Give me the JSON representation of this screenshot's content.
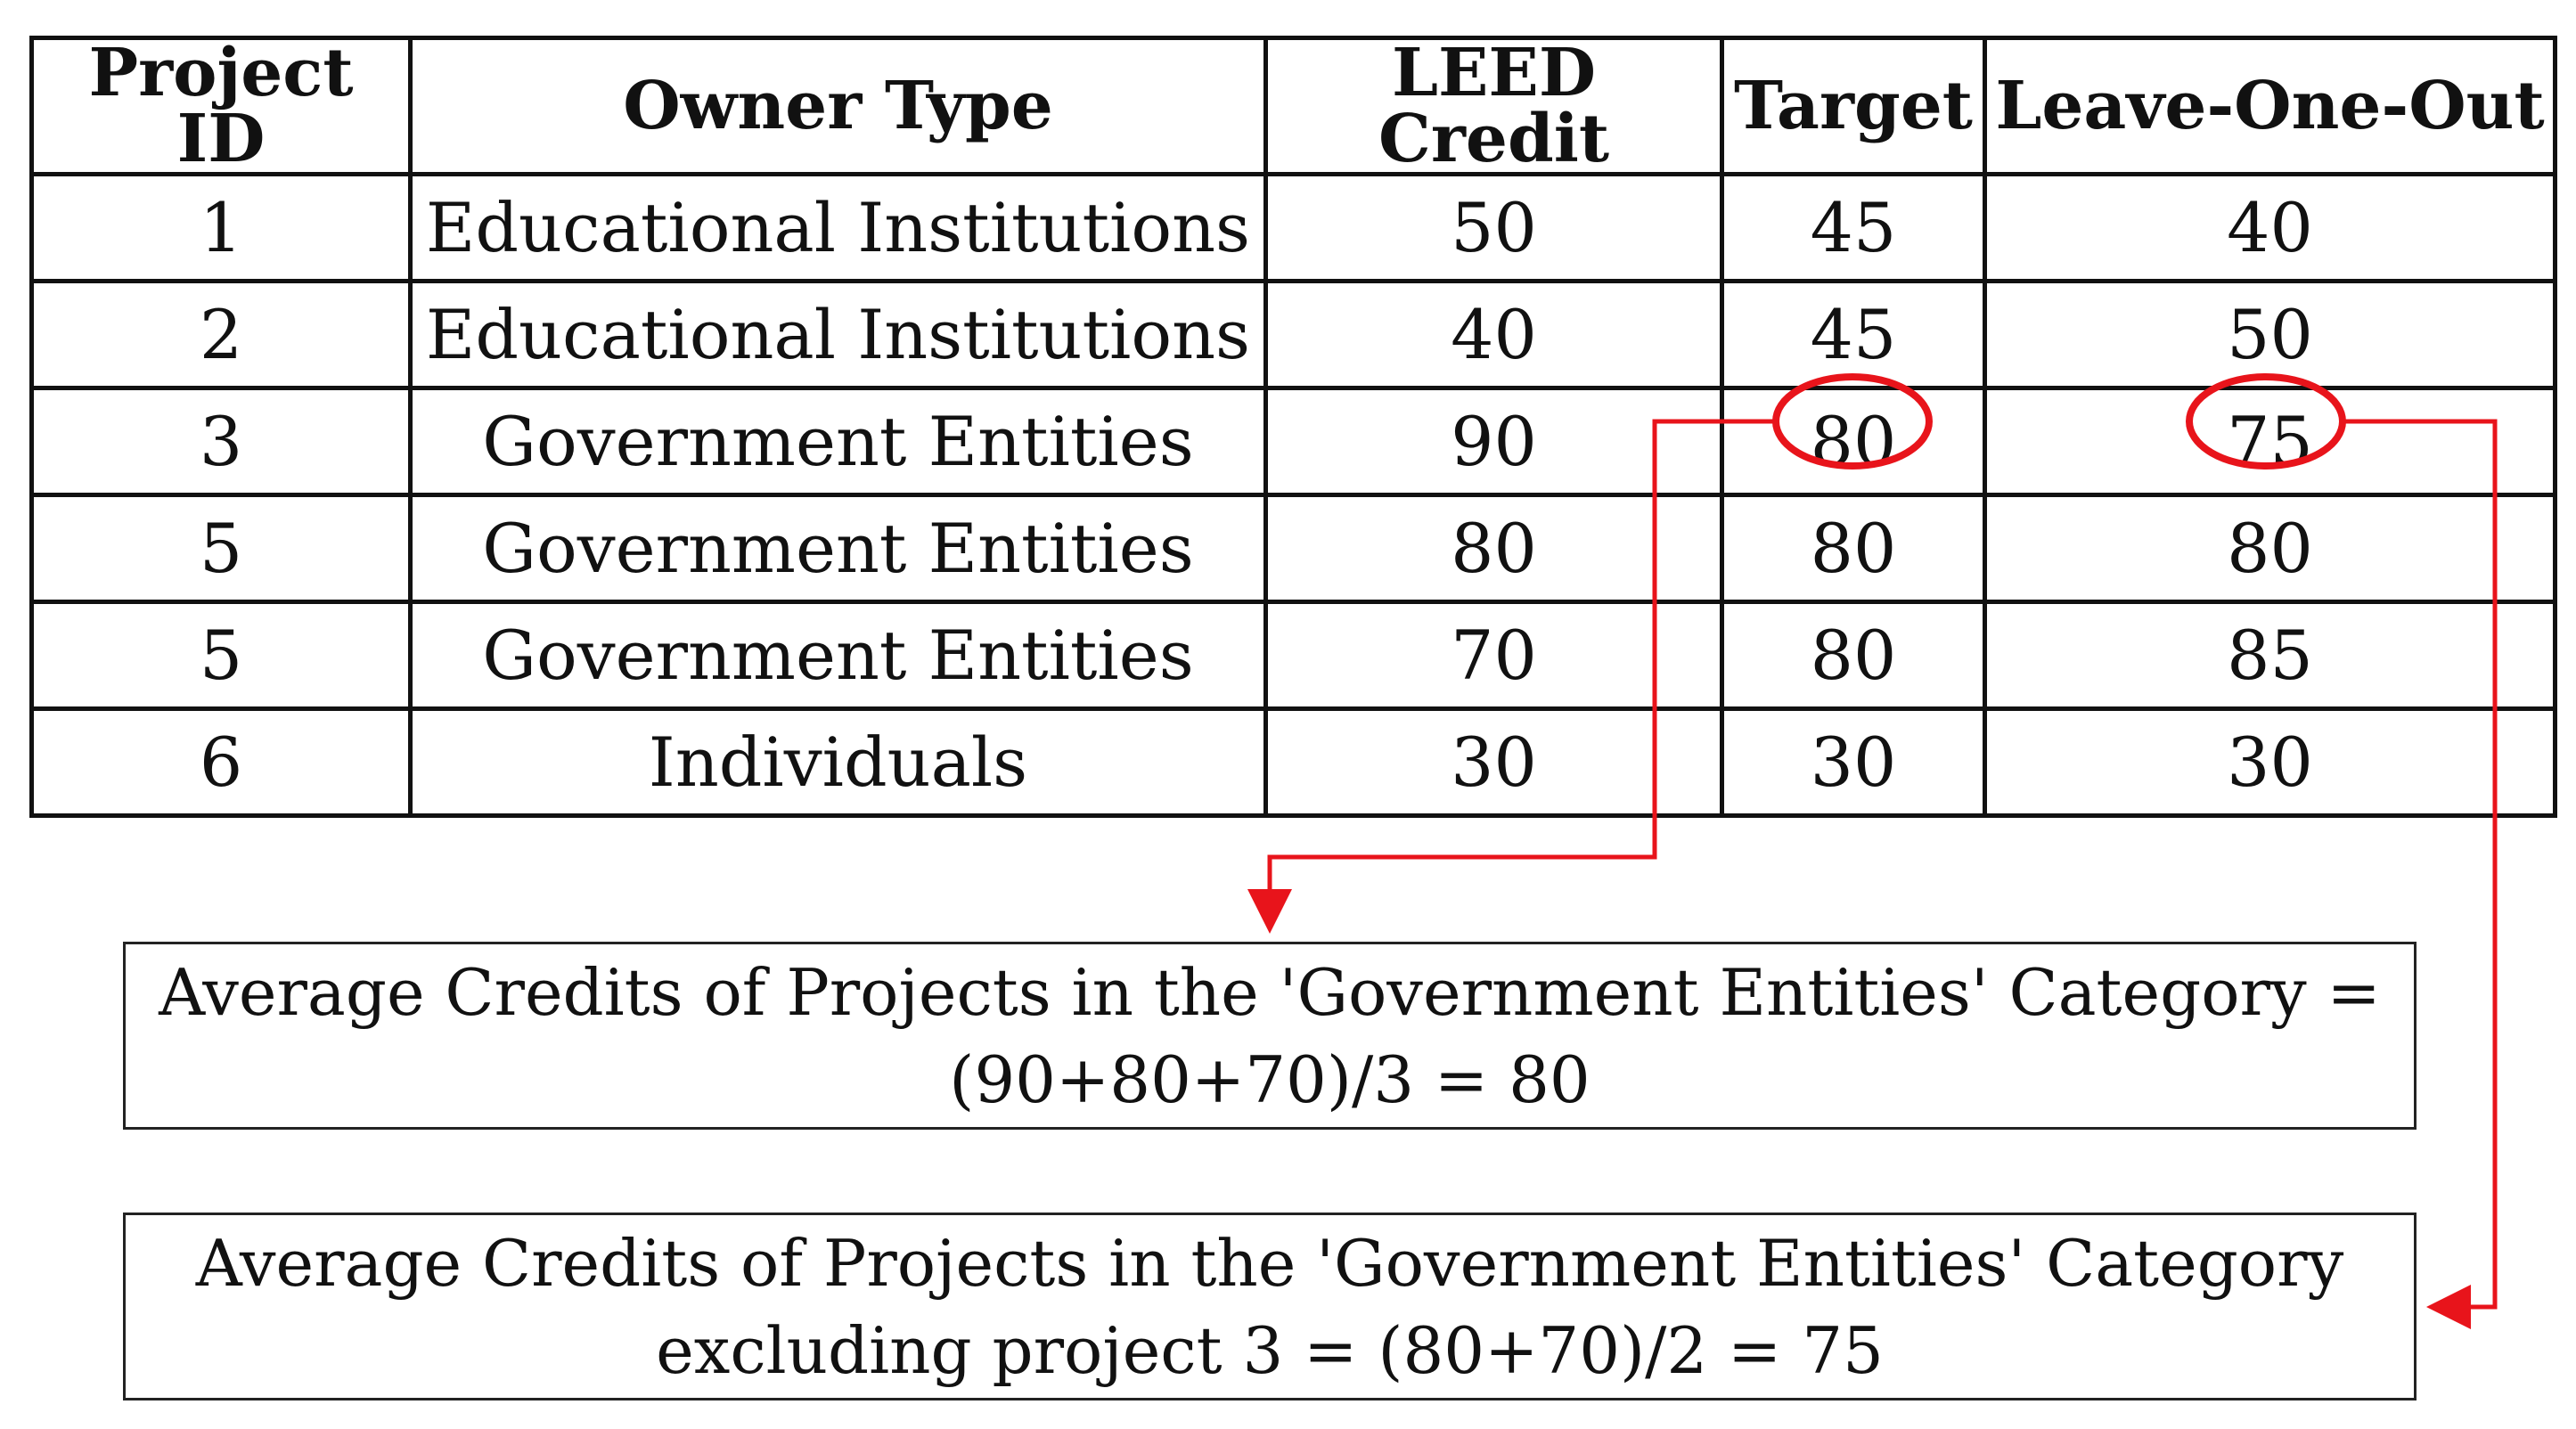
{
  "table": {
    "headers": [
      "Project ID",
      "Owner Type",
      "LEED Credit",
      "Target",
      "Leave-One-Out"
    ],
    "rows": [
      [
        "1",
        "Educational Institutions",
        "50",
        "45",
        "40"
      ],
      [
        "2",
        "Educational Institutions",
        "40",
        "45",
        "50"
      ],
      [
        "3",
        "Government Entities",
        "90",
        "80",
        "75"
      ],
      [
        "5",
        "Government Entities",
        "80",
        "80",
        "80"
      ],
      [
        "5",
        "Government Entities",
        "70",
        "80",
        "85"
      ],
      [
        "6",
        "Individuals",
        "30",
        "30",
        "30"
      ]
    ]
  },
  "annotations": {
    "target_box": {
      "line1": "Average Credits of Projects in the 'Government Entities' Category =",
      "line2": "(90+80+70)/3 = 80"
    },
    "loo_box": {
      "line1": "Average Credits of Projects in the 'Government Entities' Category",
      "line2": "excluding project 3 = (80+70)/2 = 75"
    }
  },
  "colors": {
    "highlight": "#e8141b",
    "border": "#111111"
  }
}
